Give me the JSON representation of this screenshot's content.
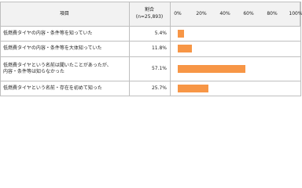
{
  "chart_data": {
    "type": "bar",
    "item_header": "項目",
    "share_header": "割合",
    "n_header": "(n=25,893)",
    "categories": [
      "低燃費タイヤの内容・条件等を知っていた",
      "低燃費タイヤの内容・条件等を大体知っていた",
      "低燃費タイヤという名前は聞いたことがあったが、\n内容・条件等は知らなかった",
      "低燃費タイヤという名前・存在を初めて知った"
    ],
    "values": [
      5.4,
      11.8,
      57.1,
      25.7
    ],
    "value_labels": [
      "5.4%",
      "11.8%",
      "57.1%",
      "25.7%"
    ],
    "color": "#f79646",
    "xlim": [
      0,
      100
    ],
    "xticks": [
      {
        "value": 0,
        "label": "0%"
      },
      {
        "value": 20,
        "label": "20%"
      },
      {
        "value": 40,
        "label": "40%"
      },
      {
        "value": 60,
        "label": "60%"
      },
      {
        "value": 80,
        "label": "80%"
      },
      {
        "value": 100,
        "label": "100%"
      }
    ]
  }
}
